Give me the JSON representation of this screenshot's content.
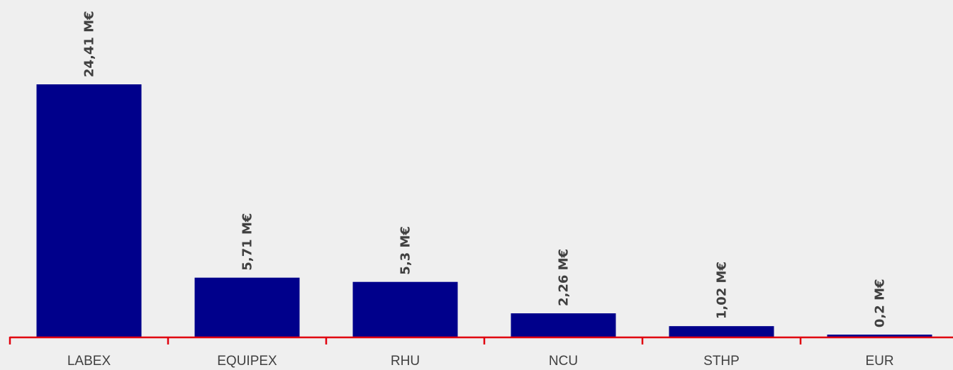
{
  "chart_data": {
    "type": "bar",
    "categories": [
      "LABEX",
      "EQUIPEX",
      "RHU",
      "NCU",
      "STHP",
      "EUR"
    ],
    "values": [
      24.41,
      5.71,
      5.3,
      2.26,
      1.02,
      0.2
    ],
    "data_labels": [
      "24,41 M€",
      "5,71 M€",
      "5,3 M€",
      "2,26 M€",
      "1,02 M€",
      "0,2 M€"
    ],
    "title": "",
    "xlabel": "",
    "ylabel": "",
    "ylim": [
      0,
      24.41
    ],
    "grid": false,
    "legend": "none",
    "colors": {
      "bar": "#00008B",
      "axis": "#E0000F",
      "text": "#404040",
      "background": "#EFEFEF"
    }
  }
}
